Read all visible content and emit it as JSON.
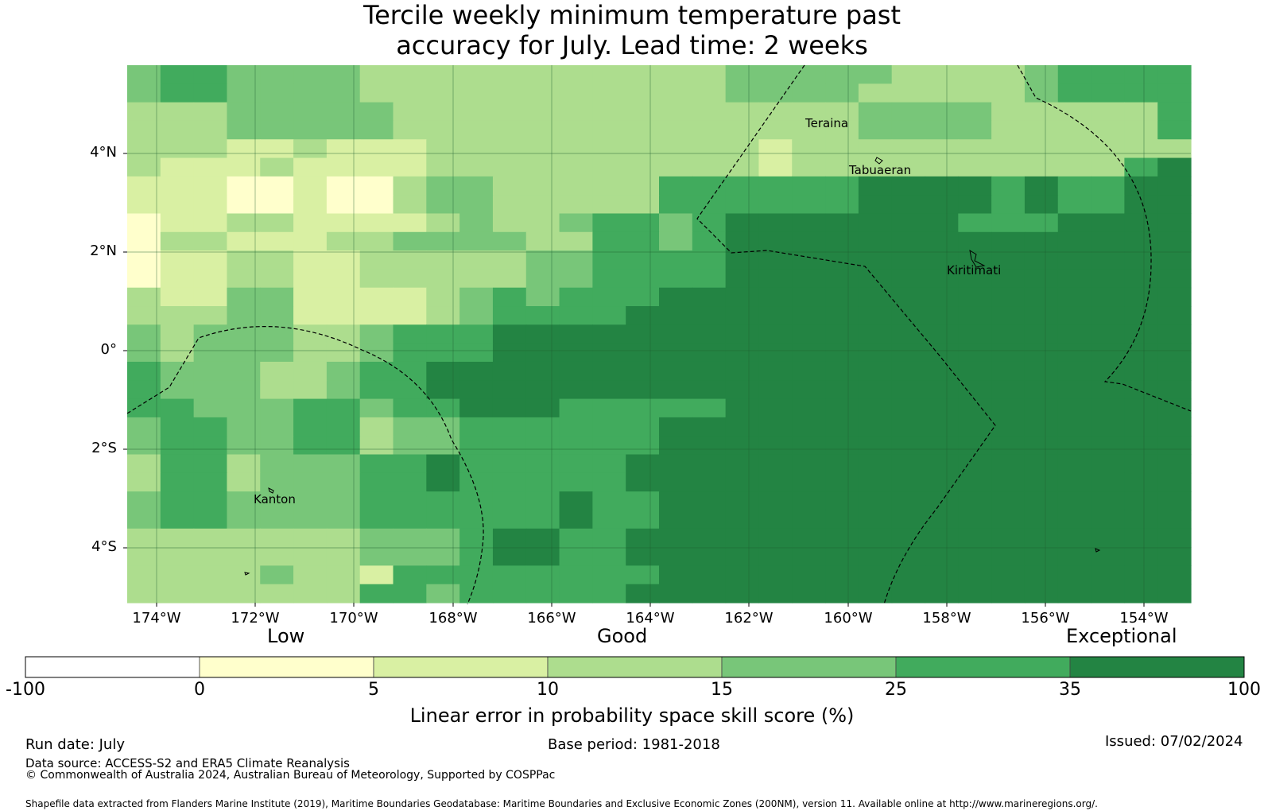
{
  "title_line1": "Tercile weekly minimum temperature past",
  "title_line2": "accuracy for July. Lead time: 2 weeks",
  "map": {
    "lat_labels": [
      "4°N",
      "2°N",
      "0°",
      "2°S",
      "4°S"
    ],
    "lon_labels": [
      "174°W",
      "172°W",
      "170°W",
      "168°W",
      "166°W",
      "164°W",
      "162°W",
      "160°W",
      "158°W",
      "156°W",
      "154°W"
    ],
    "places": [
      "Teraina",
      "Tabuaeran",
      "Kiritimati",
      "Kanton"
    ],
    "grid": [
      "45544443333333333344444333345555",
      "45544443333333333344443333345555",
      "33344444333333333333334444333335",
      "33344444333333333333334444333335",
      "33322322233333333332333333333333",
      "32223222233333333332333333333356",
      "22211211344333335555556666565566",
      "22211211344333335555556666565566",
      "12233222234334554566666665556666",
      "13322233444433554566666666666666",
      "12233223333344555566666666666666",
      "12233223333344555566666666666666",
      "32244222234545556666666666666666",
      "33344222234555566666666666666666",
      "43444334555666666666666666666666",
      "43444334555666666666666666666666",
      "54443345566666666666666666666666",
      "54443345566666666666666666666666",
      "55444554556665555566666666666666",
      "45544553445555556666666666666666",
      "45544553445555556666666666666666",
      "35534445565555566666666666666666",
      "35534445565555566666666666666666",
      "45544445555556556666666666666666",
      "45544445555556556666666666666666",
      "33333334445665566666666666666666",
      "33333334445665566666666666666666",
      "33334332555555556666666666666666",
      "33333335545555566666666666666666"
    ]
  },
  "colorbar": {
    "categories": [
      "Low",
      "Good",
      "Exceptional"
    ],
    "ticks": [
      "-100",
      "0",
      "5",
      "10",
      "15",
      "25",
      "35",
      "100"
    ],
    "colors": [
      "#ffffff",
      "#ffffcc",
      "#d9f0a3",
      "#addd8e",
      "#78c679",
      "#41ab5d",
      "#238443"
    ],
    "title": "Linear error in probability space skill score (%)"
  },
  "footer": {
    "run_date": "Run date: July",
    "base_period": "Base period: 1981-2018",
    "issued": "Issued: 07/02/2024",
    "data_source": "Data source: ACCESS-S2 and ERA5 Climate Reanalysis",
    "copyright": "© Commonwealth of Australia 2024, Australian Bureau of Meteorology, Supported by COSPPac",
    "shapefile": "Shapefile data extracted from Flanders Marine Institute (2019), Maritime Boundaries Geodatabase: Maritime Boundaries and Exclusive Economic Zones (200NM), version 11. Available online at http://www.marineregions.org/."
  }
}
